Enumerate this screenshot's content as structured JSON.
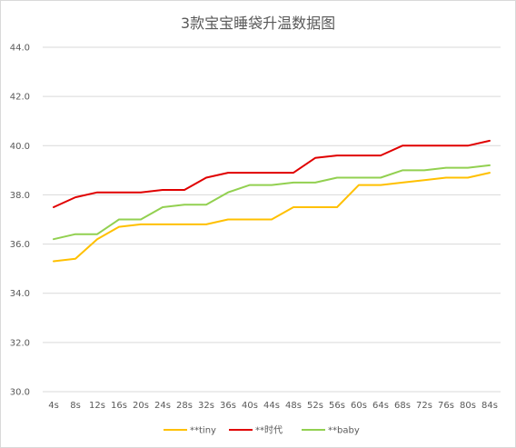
{
  "chart_data": {
    "type": "line",
    "title": "3款宝宝睡袋升温数据图",
    "xlabel": "",
    "ylabel": "",
    "categories": [
      "4s",
      "8s",
      "12s",
      "16s",
      "20s",
      "24s",
      "28s",
      "32s",
      "36s",
      "40s",
      "44s",
      "48s",
      "52s",
      "56s",
      "60s",
      "64s",
      "68s",
      "72s",
      "76s",
      "80s",
      "84s"
    ],
    "ylim": [
      30.0,
      44.0
    ],
    "yticks": [
      "30.0",
      "32.0",
      "34.0",
      "36.0",
      "38.0",
      "40.0",
      "42.0",
      "44.0"
    ],
    "grid": true,
    "legend_position": "bottom",
    "series": [
      {
        "name": "**tiny",
        "color": "#FFC000",
        "values": [
          35.3,
          35.4,
          36.2,
          36.7,
          36.8,
          36.8,
          36.8,
          36.8,
          37.0,
          37.0,
          37.0,
          37.5,
          37.5,
          37.5,
          38.4,
          38.4,
          38.5,
          38.6,
          38.7,
          38.7,
          38.9
        ]
      },
      {
        "name": "**时代",
        "color": "#E00000",
        "values": [
          37.5,
          37.9,
          38.1,
          38.1,
          38.1,
          38.2,
          38.2,
          38.7,
          38.9,
          38.9,
          38.9,
          38.9,
          39.5,
          39.6,
          39.6,
          39.6,
          40.0,
          40.0,
          40.0,
          40.0,
          40.2
        ]
      },
      {
        "name": "**baby",
        "color": "#92D050",
        "values": [
          36.2,
          36.4,
          36.4,
          37.0,
          37.0,
          37.5,
          37.6,
          37.6,
          38.1,
          38.4,
          38.4,
          38.5,
          38.5,
          38.7,
          38.7,
          38.7,
          39.0,
          39.0,
          39.1,
          39.1,
          39.2
        ]
      }
    ]
  }
}
